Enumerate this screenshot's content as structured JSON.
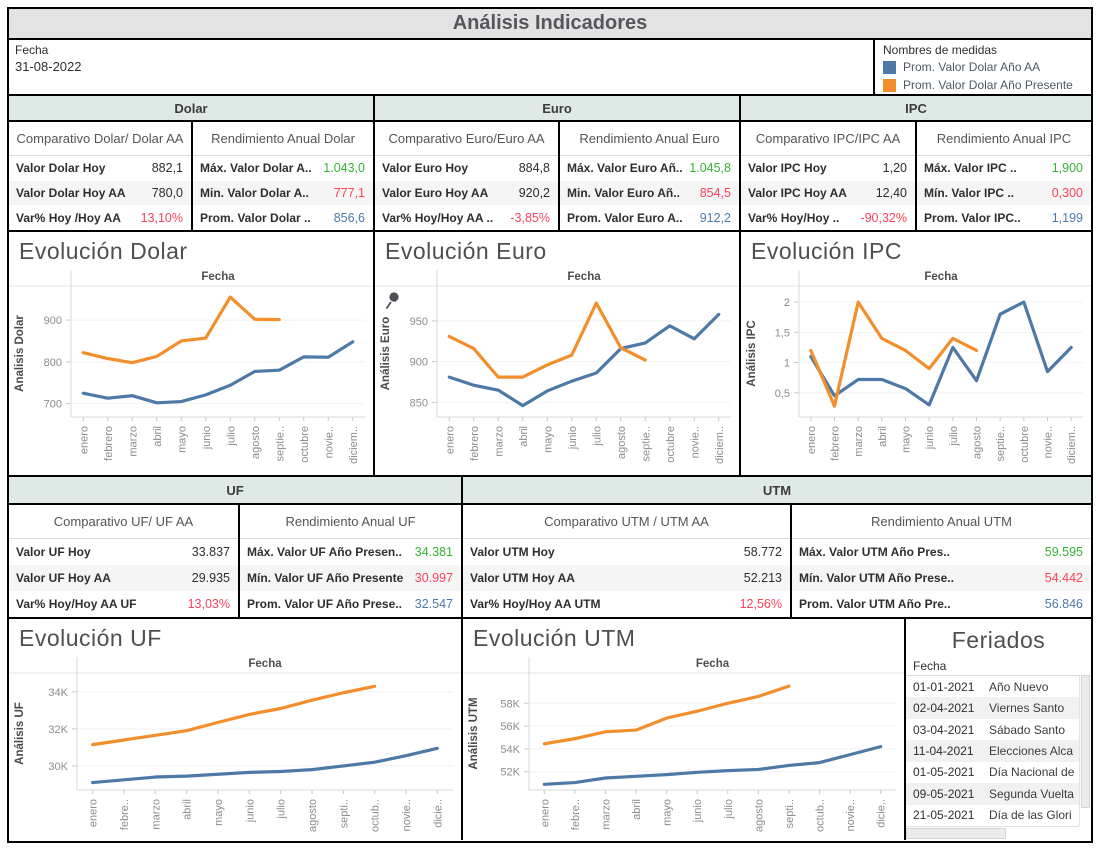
{
  "title": "Análisis Indicadores",
  "filters": {
    "fecha_label": "Fecha",
    "fecha_value": "31-08-2022"
  },
  "legend": {
    "title": "Nombres de medidas",
    "items": [
      {
        "label": "Prom. Valor Dolar Año AA",
        "color": "#4e79a7"
      },
      {
        "label": "Prom. Valor Dolar Año Presente",
        "color": "#f28e2b"
      }
    ]
  },
  "colors": {
    "blue": "#4e79a7",
    "orange": "#f28e2b",
    "green": "#35b335",
    "red": "#f8435a",
    "header_bg": "#dfe9e5"
  },
  "sections": [
    {
      "name": "Dolar",
      "comparativo": {
        "title": "Comparativo Dolar/ Dolar AA",
        "rows": [
          {
            "label": "Valor Dolar Hoy",
            "value": "882,1"
          },
          {
            "label": "Valor Dolar Hoy AA",
            "value": "780,0"
          },
          {
            "label": "Var% Hoy /Hoy AA",
            "value": "13,10%",
            "color": "#f8435a"
          }
        ]
      },
      "rendimiento": {
        "title": "Rendimiento Anual Dolar",
        "rows": [
          {
            "label": "Máx. Valor Dolar A..",
            "value": "1.043,0",
            "color": "#35b335"
          },
          {
            "label": "Min. Valor Dolar A..",
            "value": "777,1",
            "color": "#f8435a"
          },
          {
            "label": "Prom. Valor Dolar ..",
            "value": "856,6",
            "color": "#4e79a7"
          }
        ]
      }
    },
    {
      "name": "Euro",
      "comparativo": {
        "title": "Comparativo Euro/Euro AA",
        "rows": [
          {
            "label": "Valor Euro Hoy",
            "value": "884,8"
          },
          {
            "label": "Valor Euro Hoy AA",
            "value": "920,2"
          },
          {
            "label": "Var% Hoy/Hoy AA ..",
            "value": "-3,85%",
            "color": "#f8435a"
          }
        ]
      },
      "rendimiento": {
        "title": "Rendimiento Anual Euro",
        "rows": [
          {
            "label": "Máx. Valor Euro Añ..",
            "value": "1.045,8",
            "color": "#35b335"
          },
          {
            "label": "Min. Valor Euro Añ..",
            "value": "854,5",
            "color": "#f8435a"
          },
          {
            "label": "Prom. Valor Euro A..",
            "value": "912,2",
            "color": "#4e79a7"
          }
        ]
      }
    },
    {
      "name": "IPC",
      "comparativo": {
        "title": "Comparativo IPC/IPC AA",
        "rows": [
          {
            "label": "Valor IPC Hoy",
            "value": "1,20"
          },
          {
            "label": "Valor IPC Hoy AA",
            "value": "12,40"
          },
          {
            "label": "Var% Hoy/Hoy ..",
            "value": "-90,32%",
            "color": "#f8435a"
          }
        ]
      },
      "rendimiento": {
        "title": "Rendimiento Anual IPC",
        "rows": [
          {
            "label": "Máx. Valor IPC ..",
            "value": "1,900",
            "color": "#35b335"
          },
          {
            "label": "Mín. Valor IPC ..",
            "value": "0,300",
            "color": "#f8435a"
          },
          {
            "label": "Prom. Valor IPC..",
            "value": "1,199",
            "color": "#4e79a7"
          }
        ]
      }
    }
  ],
  "sections2": [
    {
      "name": "UF",
      "comparativo": {
        "title": "Comparativo UF/ UF AA",
        "rows": [
          {
            "label": "Valor UF Hoy",
            "value": "33.837"
          },
          {
            "label": "Valor UF Hoy AA",
            "value": "29.935"
          },
          {
            "label": "Var% Hoy/Hoy AA UF",
            "value": "13,03%",
            "color": "#f8435a"
          }
        ]
      },
      "rendimiento": {
        "title": "Rendimiento Anual UF",
        "rows": [
          {
            "label": "Máx. Valor UF Año Presen..",
            "value": "34.381",
            "color": "#35b335"
          },
          {
            "label": "Mín. Valor UF Año Presente",
            "value": "30.997",
            "color": "#f8435a"
          },
          {
            "label": "Prom. Valor UF Año Prese..",
            "value": "32.547",
            "color": "#4e79a7"
          }
        ]
      }
    },
    {
      "name": "UTM",
      "comparativo": {
        "title": "Comparativo UTM / UTM AA",
        "rows": [
          {
            "label": "Valor UTM Hoy",
            "value": "58.772"
          },
          {
            "label": "Valor UTM Hoy AA",
            "value": "52.213"
          },
          {
            "label": "Var% Hoy/Hoy AA UTM",
            "value": "12,56%",
            "color": "#f8435a"
          }
        ]
      },
      "rendimiento": {
        "title": "Rendimiento Anual UTM",
        "rows": [
          {
            "label": "Máx. Valor UTM Año Pres..",
            "value": "59.595",
            "color": "#35b335"
          },
          {
            "label": "Mín. Valor UTM Año Prese..",
            "value": "54.442",
            "color": "#f8435a"
          },
          {
            "label": "Prom. Valor UTM Año Pre..",
            "value": "56.846",
            "color": "#4e79a7"
          }
        ]
      }
    }
  ],
  "chart_data": [
    {
      "type": "line",
      "title": "Evolución Dolar",
      "xlabel": "Fecha",
      "ylabel": "Analisis Dolar",
      "x_categories": [
        "enero",
        "febrero",
        "marzo",
        "abril",
        "mayo",
        "junio",
        "julio",
        "agosto",
        "septie..",
        "octubre",
        "novie..",
        "diciem.."
      ],
      "ylim": [
        668,
        972
      ],
      "ytick_values": [
        700,
        800,
        900
      ],
      "ytick_labels": [
        "700",
        "800",
        "900"
      ],
      "series": [
        {
          "name": "Año AA",
          "color": "#4e79a7",
          "values": [
            725,
            713,
            719,
            702,
            705,
            721,
            744,
            777,
            780,
            812,
            811,
            848
          ]
        },
        {
          "name": "Año Presente",
          "color": "#f28e2b",
          "values": [
            822,
            808,
            798,
            813,
            850,
            857,
            955,
            902,
            901
          ]
        }
      ]
    },
    {
      "type": "line",
      "title": "Evolución Euro",
      "xlabel": "Fecha",
      "ylabel": "Análisis Euro",
      "x_categories": [
        "enero",
        "febrero",
        "marzo",
        "abril",
        "mayo",
        "junio",
        "julio",
        "agosto",
        "septie..",
        "octubre",
        "novie..",
        "diciem.."
      ],
      "ylim": [
        832,
        988
      ],
      "ytick_values": [
        850,
        900,
        950
      ],
      "ytick_labels": [
        "850",
        "900",
        "950"
      ],
      "series": [
        {
          "name": "Año AA",
          "color": "#4e79a7",
          "values": [
            881,
            871,
            865,
            846,
            864,
            876,
            886,
            916,
            923,
            944,
            928,
            958
          ]
        },
        {
          "name": "Año Presente",
          "color": "#f28e2b",
          "values": [
            931,
            916,
            881,
            881,
            896,
            908,
            972,
            917,
            902
          ]
        }
      ]
    },
    {
      "type": "line",
      "title": "Evolución IPC",
      "xlabel": "Fecha",
      "ylabel": "Análisis IPC",
      "x_categories": [
        "enero",
        "febrero",
        "marzo",
        "abril",
        "mayo",
        "junio",
        "julio",
        "agosto",
        "septie..",
        "octubre",
        "novie..",
        "diciem.."
      ],
      "ylim": [
        0.1,
        2.2
      ],
      "ytick_values": [
        0.5,
        1,
        1.5,
        2
      ],
      "ytick_labels": [
        "0,5",
        "1",
        "1,5",
        "2"
      ],
      "series": [
        {
          "name": "Año AA",
          "color": "#4e79a7",
          "values": [
            1.1,
            0.45,
            0.72,
            0.72,
            0.57,
            0.3,
            1.25,
            0.7,
            1.8,
            2.0,
            0.85,
            1.25
          ]
        },
        {
          "name": "Año Presente",
          "color": "#f28e2b",
          "values": [
            1.2,
            0.28,
            2.0,
            1.4,
            1.2,
            0.9,
            1.4,
            1.2
          ]
        }
      ]
    },
    {
      "type": "line",
      "title": "Evolución UF",
      "xlabel": "Fecha",
      "ylabel": "Análisis UF",
      "x_categories": [
        "enero",
        "febre..",
        "marzo",
        "abril",
        "mayo",
        "junio",
        "julio",
        "agosto",
        "septi..",
        "octub..",
        "novie..",
        "dicie.."
      ],
      "ylim": [
        28700,
        34800
      ],
      "ytick_values": [
        30000,
        32000,
        34000
      ],
      "ytick_labels": [
        "30K",
        "32K",
        "34K"
      ],
      "series": [
        {
          "name": "Año AA",
          "color": "#4e79a7",
          "values": [
            29100,
            29250,
            29400,
            29450,
            29550,
            29650,
            29700,
            29800,
            30000,
            30200,
            30550,
            30950
          ]
        },
        {
          "name": "Año Presente",
          "color": "#f28e2b",
          "values": [
            31150,
            31400,
            31650,
            31900,
            32350,
            32780,
            33100,
            33550,
            33950,
            34300
          ]
        }
      ]
    },
    {
      "type": "line",
      "title": "Evolución UTM",
      "xlabel": "Fecha",
      "ylabel": "Análisis UTM",
      "x_categories": [
        "enero",
        "febre..",
        "marzo",
        "abril",
        "mayo",
        "junio",
        "julio",
        "agosto",
        "septi..",
        "octub..",
        "novie..",
        "dicie.."
      ],
      "ylim": [
        50400,
        60300
      ],
      "ytick_values": [
        52000,
        54000,
        56000,
        58000
      ],
      "ytick_labels": [
        "52K",
        "54K",
        "56K",
        "58K"
      ],
      "series": [
        {
          "name": "Año AA",
          "color": "#4e79a7",
          "values": [
            50900,
            51050,
            51450,
            51600,
            51750,
            51950,
            52100,
            52200,
            52550,
            52800,
            53500,
            54200
          ]
        },
        {
          "name": "Año Presente",
          "color": "#f28e2b",
          "values": [
            54450,
            54900,
            55500,
            55650,
            56700,
            57300,
            58000,
            58600,
            59500
          ]
        }
      ]
    }
  ],
  "feriados": {
    "title": "Feriados",
    "column_header": "Fecha",
    "rows": [
      {
        "date": "01-01-2021",
        "name": "Año Nuevo"
      },
      {
        "date": "02-04-2021",
        "name": "Viernes Santo"
      },
      {
        "date": "03-04-2021",
        "name": "Sábado Santo"
      },
      {
        "date": "11-04-2021",
        "name": "Elecciones Alca"
      },
      {
        "date": "01-05-2021",
        "name": "Día Nacional de"
      },
      {
        "date": "09-05-2021",
        "name": "Segunda Vuelta"
      },
      {
        "date": "21-05-2021",
        "name": "Día de las Glori"
      }
    ]
  }
}
